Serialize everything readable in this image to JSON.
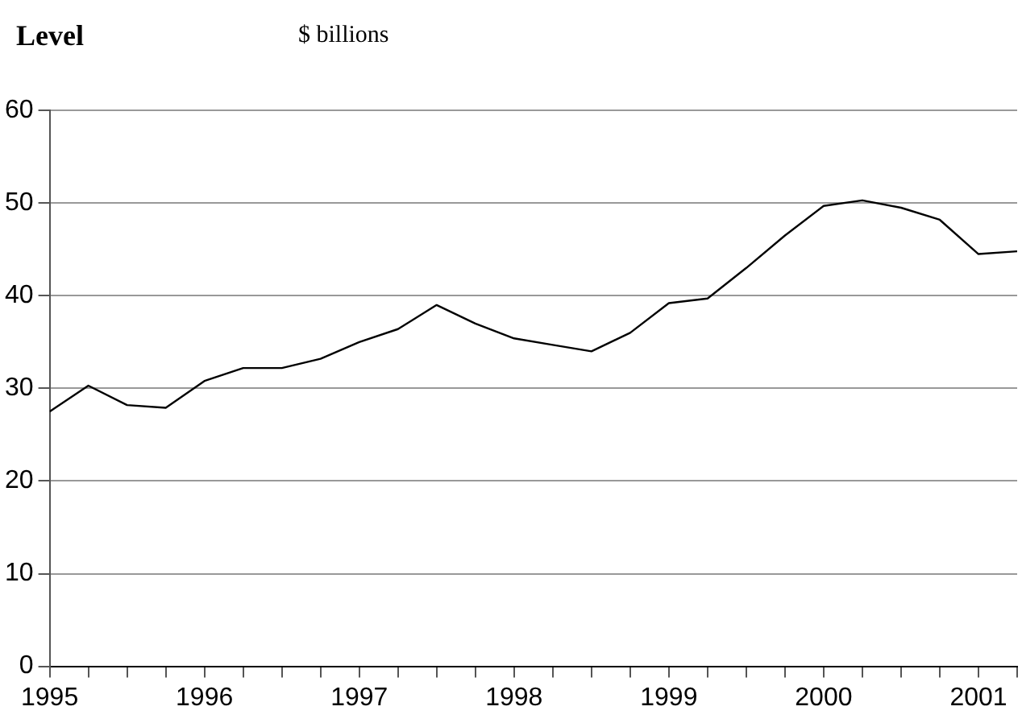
{
  "chart_data": {
    "type": "line",
    "title": "Level",
    "subtitle": "$ billions",
    "x": [
      1995,
      1995.25,
      1995.5,
      1995.75,
      1996,
      1996.25,
      1996.5,
      1996.75,
      1997,
      1997.25,
      1997.5,
      1997.75,
      1998,
      1998.25,
      1998.5,
      1998.75,
      1999,
      1999.25,
      1999.5,
      1999.75,
      2000,
      2000.25,
      2000.5,
      2000.75,
      2001,
      2001.25
    ],
    "series": [
      {
        "color": "#000000",
        "values": [
          27.5,
          30.3,
          28.2,
          27.9,
          30.8,
          32.2,
          32.2,
          33.2,
          35.0,
          36.4,
          39.0,
          37.0,
          35.4,
          34.7,
          34.0,
          36.0,
          39.2,
          39.7,
          43.0,
          46.5,
          49.7,
          50.3,
          49.5,
          48.2,
          44.5,
          44.8
        ]
      }
    ],
    "xlim": [
      1995,
      2001.25
    ],
    "xticks": [
      1995,
      {
        "value": 1995.25,
        "label": null
      },
      {
        "value": 1995.5,
        "label": null
      },
      {
        "value": 1995.75,
        "label": null
      },
      1996,
      {
        "value": 1996.25,
        "label": null
      },
      {
        "value": 1996.5,
        "label": null
      },
      {
        "value": 1996.75,
        "label": null
      },
      1997,
      {
        "value": 1997.25,
        "label": null
      },
      {
        "value": 1997.5,
        "label": null
      },
      {
        "value": 1997.75,
        "label": null
      },
      1998,
      {
        "value": 1998.25,
        "label": null
      },
      {
        "value": 1998.5,
        "label": null
      },
      {
        "value": 1998.75,
        "label": null
      },
      1999,
      {
        "value": 1999.25,
        "label": null
      },
      {
        "value": 1999.5,
        "label": null
      },
      {
        "value": 1999.75,
        "label": null
      },
      2000,
      {
        "value": 2000.25,
        "label": null
      },
      {
        "value": 2000.5,
        "label": null
      },
      {
        "value": 2000.75,
        "label": null
      },
      2001,
      {
        "value": 2001.25,
        "label": null
      }
    ],
    "ylim": [
      0,
      60
    ],
    "yticks": [
      0,
      10,
      20,
      30,
      40,
      50,
      60
    ],
    "grid": "y",
    "legend": false,
    "marker": "none",
    "line_style": "solid"
  }
}
